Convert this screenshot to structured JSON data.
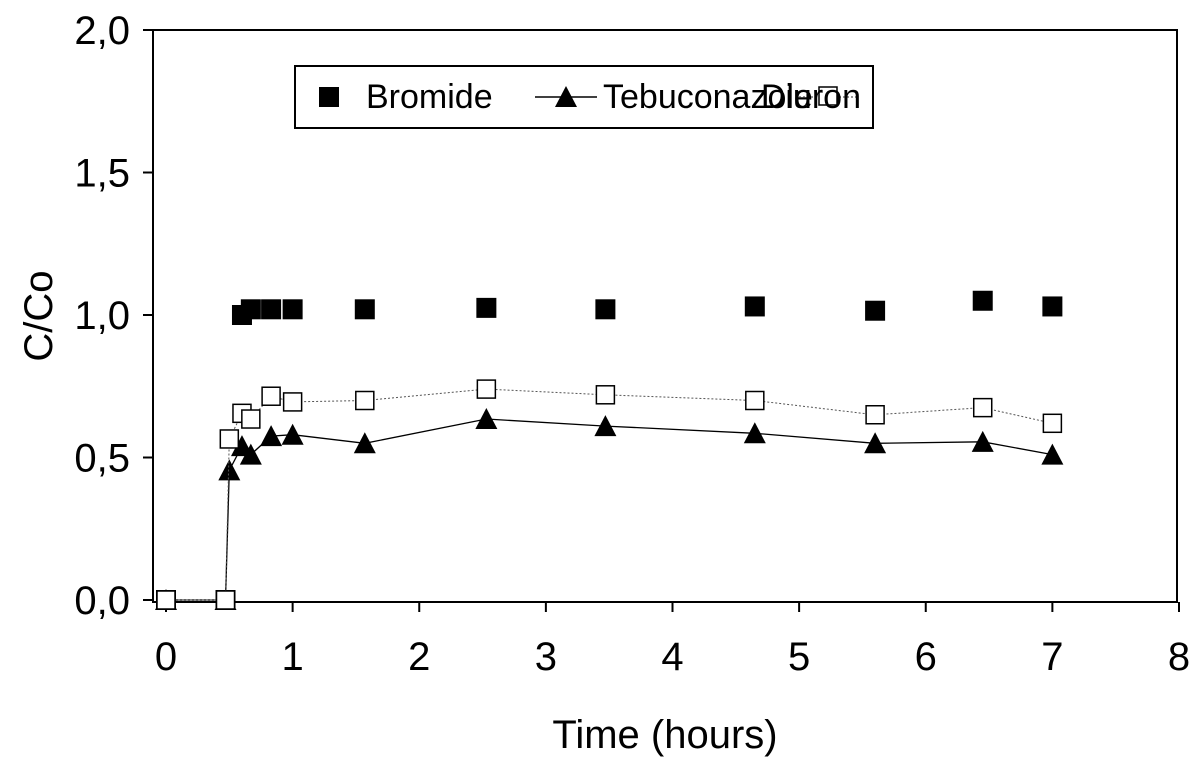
{
  "chart_data": {
    "type": "scatter",
    "xlabel": "Time (hours)",
    "ylabel": "C/Co",
    "xlim": [
      0,
      8
    ],
    "ylim": [
      0,
      2
    ],
    "x_ticks": [
      "0",
      "1",
      "2",
      "3",
      "4",
      "5",
      "6",
      "7",
      "8"
    ],
    "y_ticks": [
      "0,0",
      "0,5",
      "1,0",
      "1,5",
      "2,0"
    ],
    "grid": false,
    "legend_position": "top-center",
    "series": [
      {
        "name": "Bromide",
        "marker": "filled-square",
        "line": false,
        "x": [
          0,
          0.47,
          0.6,
          0.67,
          0.83,
          1.0,
          1.57,
          2.53,
          3.47,
          4.65,
          5.6,
          6.45,
          7.0
        ],
        "y": [
          0.0,
          0.0,
          1.0,
          1.02,
          1.02,
          1.02,
          1.02,
          1.025,
          1.02,
          1.03,
          1.015,
          1.05,
          1.03
        ]
      },
      {
        "name": "Tebuconazole",
        "marker": "filled-triangle",
        "line": true,
        "x": [
          0,
          0.47,
          0.5,
          0.6,
          0.67,
          0.83,
          1.0,
          1.57,
          2.53,
          3.47,
          4.65,
          5.6,
          6.45,
          7.0
        ],
        "y": [
          0.0,
          0.0,
          0.455,
          0.54,
          0.51,
          0.575,
          0.58,
          0.55,
          0.635,
          0.61,
          0.585,
          0.55,
          0.555,
          0.51
        ]
      },
      {
        "name": "Diuron",
        "marker": "open-square",
        "line": true,
        "x": [
          0,
          0.47,
          0.5,
          0.6,
          0.67,
          0.83,
          1.0,
          1.57,
          2.53,
          3.47,
          4.65,
          5.6,
          6.45,
          7.0
        ],
        "y": [
          0.0,
          0.0,
          0.565,
          0.655,
          0.635,
          0.715,
          0.695,
          0.7,
          0.74,
          0.72,
          0.7,
          0.65,
          0.675,
          0.62
        ]
      }
    ],
    "colors": {
      "axis": "#000000",
      "marker": "#000000",
      "background": "#ffffff"
    }
  }
}
